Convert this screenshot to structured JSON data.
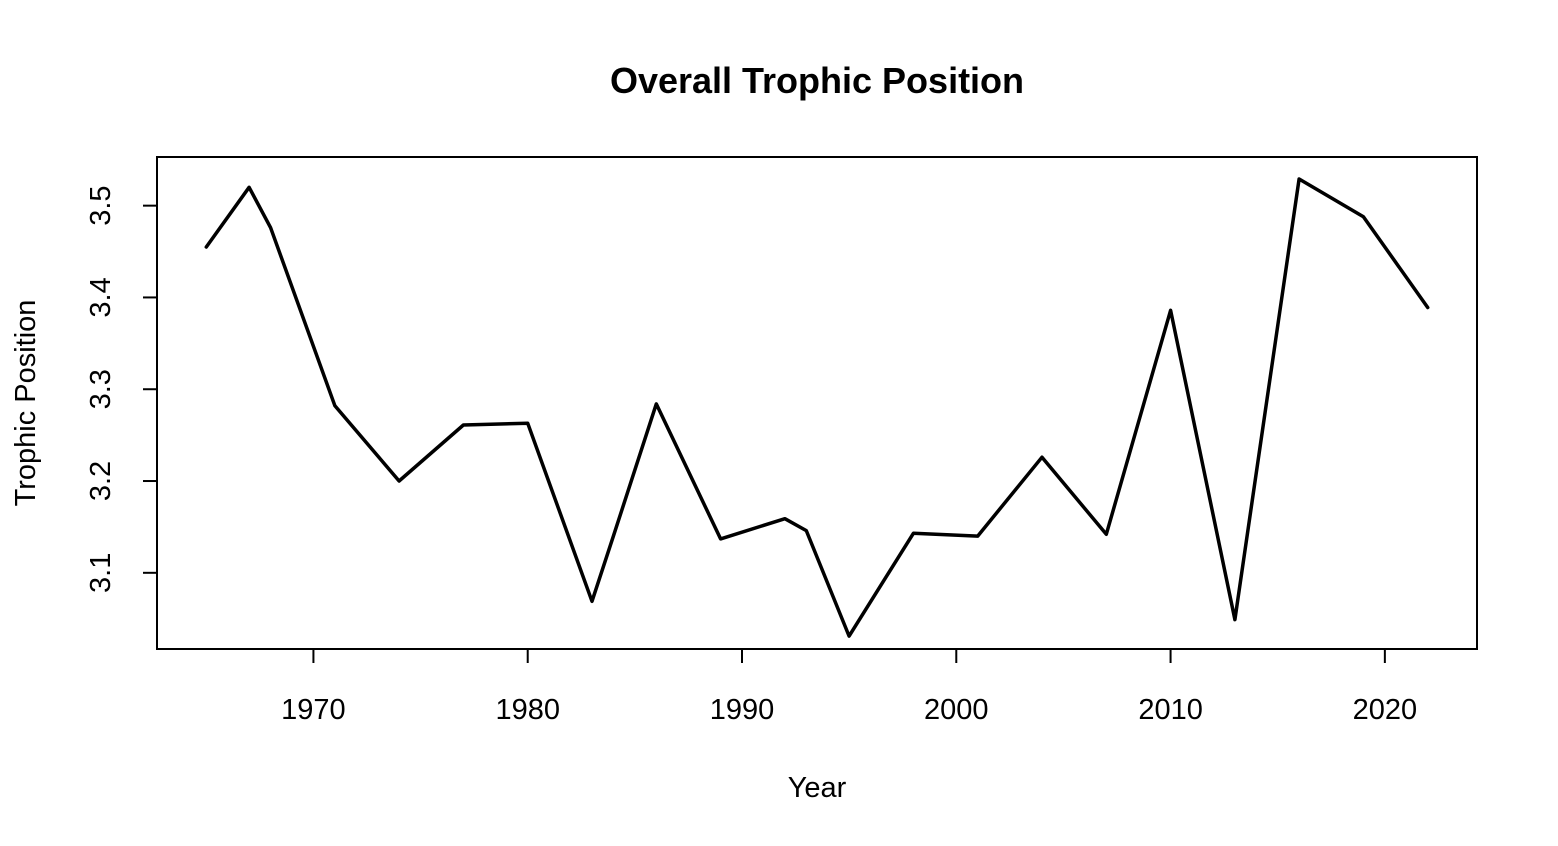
{
  "chart_data": {
    "type": "line",
    "title": "Overall Trophic Position",
    "xlabel": "Year",
    "ylabel": "Trophic Position",
    "xlim": [
      1962.7,
      2024.3
    ],
    "ylim": [
      3.017,
      3.553
    ],
    "x_ticks": [
      1970,
      1980,
      1990,
      2000,
      2010,
      2020
    ],
    "y_ticks": [
      3.1,
      3.2,
      3.3,
      3.4,
      3.5
    ],
    "grid": false,
    "legend": "none",
    "series": [
      {
        "x": [
          1965,
          1967,
          1968,
          1971,
          1974,
          1977,
          1980,
          1983,
          1984,
          1986,
          1989,
          1992,
          1993,
          1995,
          1998,
          2001,
          2004,
          2007,
          2010,
          2013,
          2016,
          2019,
          2022
        ],
        "y": [
          3.455,
          3.52,
          3.476,
          3.282,
          3.2,
          3.261,
          3.263,
          3.069,
          3.14,
          3.284,
          3.137,
          3.159,
          3.146,
          3.031,
          3.143,
          3.14,
          3.226,
          3.142,
          3.386,
          3.049,
          3.529,
          3.488,
          3.389
        ],
        "color": "#000000"
      }
    ]
  }
}
